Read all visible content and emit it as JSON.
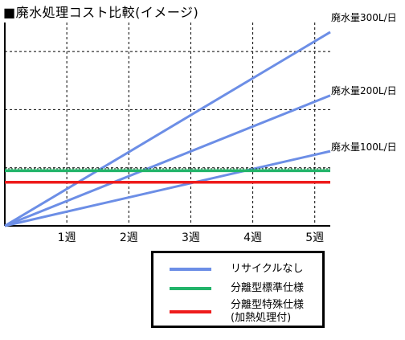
{
  "title": "■廃水処理コスト比較(イメージ)",
  "chart_data": {
    "type": "line",
    "xlabel": "",
    "ylabel": "",
    "xlim": [
      0,
      5.25
    ],
    "ylim": [
      0,
      7
    ],
    "x_ticks": [
      "1週",
      "2週",
      "3週",
      "4週",
      "5週"
    ],
    "x_tick_values": [
      1,
      2,
      3,
      4,
      5
    ],
    "grid": true,
    "series": [
      {
        "name": "廃水量300L/日",
        "color": "#6c8ee6",
        "x": [
          0,
          5.25
        ],
        "y": [
          0,
          6.67
        ]
      },
      {
        "name": "廃水量200L/日",
        "color": "#6c8ee6",
        "x": [
          0,
          5.25
        ],
        "y": [
          0,
          4.49
        ]
      },
      {
        "name": "廃水量100L/日",
        "color": "#6c8ee6",
        "x": [
          0,
          5.25
        ],
        "y": [
          0,
          2.57
        ]
      },
      {
        "name": "分離型標準仕様",
        "color": "#22b46a",
        "x": [
          0,
          5.25
        ],
        "y": [
          1.9,
          1.9
        ]
      },
      {
        "name": "分離型特殊仕様(加熱処理付)",
        "color": "#ee1c1c",
        "x": [
          0,
          5.25
        ],
        "y": [
          1.5,
          1.5
        ]
      }
    ],
    "legend_position": "bottom-right",
    "legend": [
      {
        "lines": [
          "リサイクルなし"
        ],
        "color": "#6c8ee6"
      },
      {
        "lines": [
          "分離型標準仕様"
        ],
        "color": "#22b46a"
      },
      {
        "lines": [
          "分離型特殊仕様",
          "(加熱処理付)"
        ],
        "color": "#ee1c1c"
      }
    ]
  }
}
